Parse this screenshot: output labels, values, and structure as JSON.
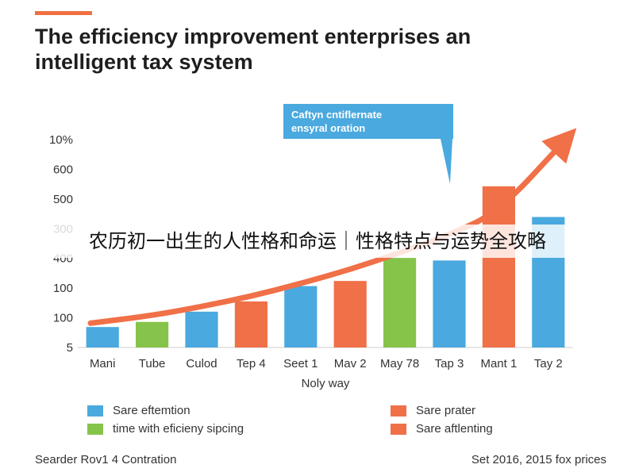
{
  "header": {
    "title_line1": "The efficiency improvement enterprises an",
    "title_line2": "intelligent tax system"
  },
  "overlay_banner": "农历初一出生的人性格和命运｜性格特点与运势全攻略",
  "callout": {
    "line1": "Caftyn cntiflernate",
    "line2": "ensyral oration"
  },
  "legend": {
    "items": [
      {
        "label": "Sare eftemtion",
        "color": "#4aa9df"
      },
      {
        "label": "time with eficieny sipcing",
        "color": "#86c34a"
      },
      {
        "label": "Sare prater",
        "color": "#f07048"
      },
      {
        "label": "Sare aftlenting",
        "color": "#f07048"
      }
    ]
  },
  "footer": {
    "left": "Searder Rov1 4 Contration",
    "right": "Set 2016, 2015 fox prices"
  },
  "colors": {
    "blue": "#4aa9df",
    "green": "#86c34a",
    "orange": "#f07048",
    "trend": "#f07048",
    "callout_bg": "#4aa9df"
  },
  "chart_data": {
    "type": "bar",
    "xlabel": "Noly way",
    "ylabel": "",
    "y_tick_labels": [
      "5",
      "100",
      "100",
      "400",
      "300",
      "500",
      "600",
      "10%"
    ],
    "categories": [
      "Mani",
      "Tube",
      "Culod",
      "Tep 4",
      "Seet 1",
      "Mav 2",
      "May 78",
      "Tap 3",
      "Mant 1",
      "Tay 2"
    ],
    "values": [
      0.8,
      1.0,
      1.4,
      1.8,
      2.4,
      2.6,
      3.5,
      3.4,
      6.3,
      5.1
    ],
    "bar_colors": [
      "blue",
      "green",
      "blue",
      "orange",
      "blue",
      "orange",
      "green",
      "blue",
      "orange",
      "blue"
    ],
    "trend_line": {
      "type": "line",
      "values": [
        0.95,
        1.25,
        1.6,
        2.0,
        2.5,
        3.05,
        3.7,
        4.4,
        5.3,
        8.1
      ]
    },
    "ylim": [
      0,
      8
    ],
    "grid": false,
    "legend_position": "bottom"
  }
}
